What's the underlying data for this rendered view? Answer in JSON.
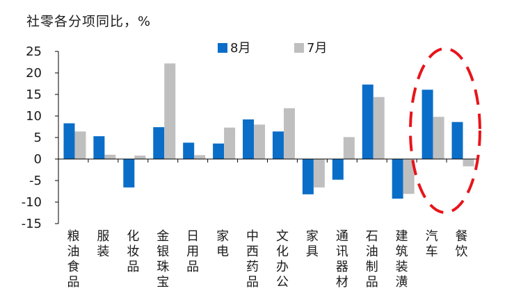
{
  "chart_data": {
    "type": "bar",
    "title": "社零各分项同比，%",
    "categories": [
      "粮油食品",
      "服装",
      "化妆品",
      "金银珠宝",
      "日用品",
      "家电",
      "中西药品",
      "文化办公",
      "家具",
      "通讯器材",
      "石油制品",
      "建筑装潢",
      "汽车",
      "餐饮"
    ],
    "series": [
      {
        "name": "8月",
        "color": "#0a6ec8",
        "values": [
          8.3,
          5.3,
          -6.6,
          7.4,
          3.8,
          3.6,
          9.2,
          6.4,
          -8.2,
          -4.8,
          17.3,
          -9.2,
          16.1,
          8.6
        ]
      },
      {
        "name": "7月",
        "color": "#bfbfbf",
        "values": [
          6.4,
          1.0,
          0.8,
          22.2,
          0.9,
          7.3,
          8.0,
          11.8,
          -6.6,
          5.1,
          14.4,
          -8.1,
          9.8,
          -1.7
        ]
      }
    ],
    "ylim": [
      -15,
      25
    ],
    "yticks": [
      25,
      20,
      15,
      10,
      5,
      0,
      -5,
      -10,
      -15
    ],
    "legend": "top-center",
    "highlight_color": "#e8141a"
  }
}
